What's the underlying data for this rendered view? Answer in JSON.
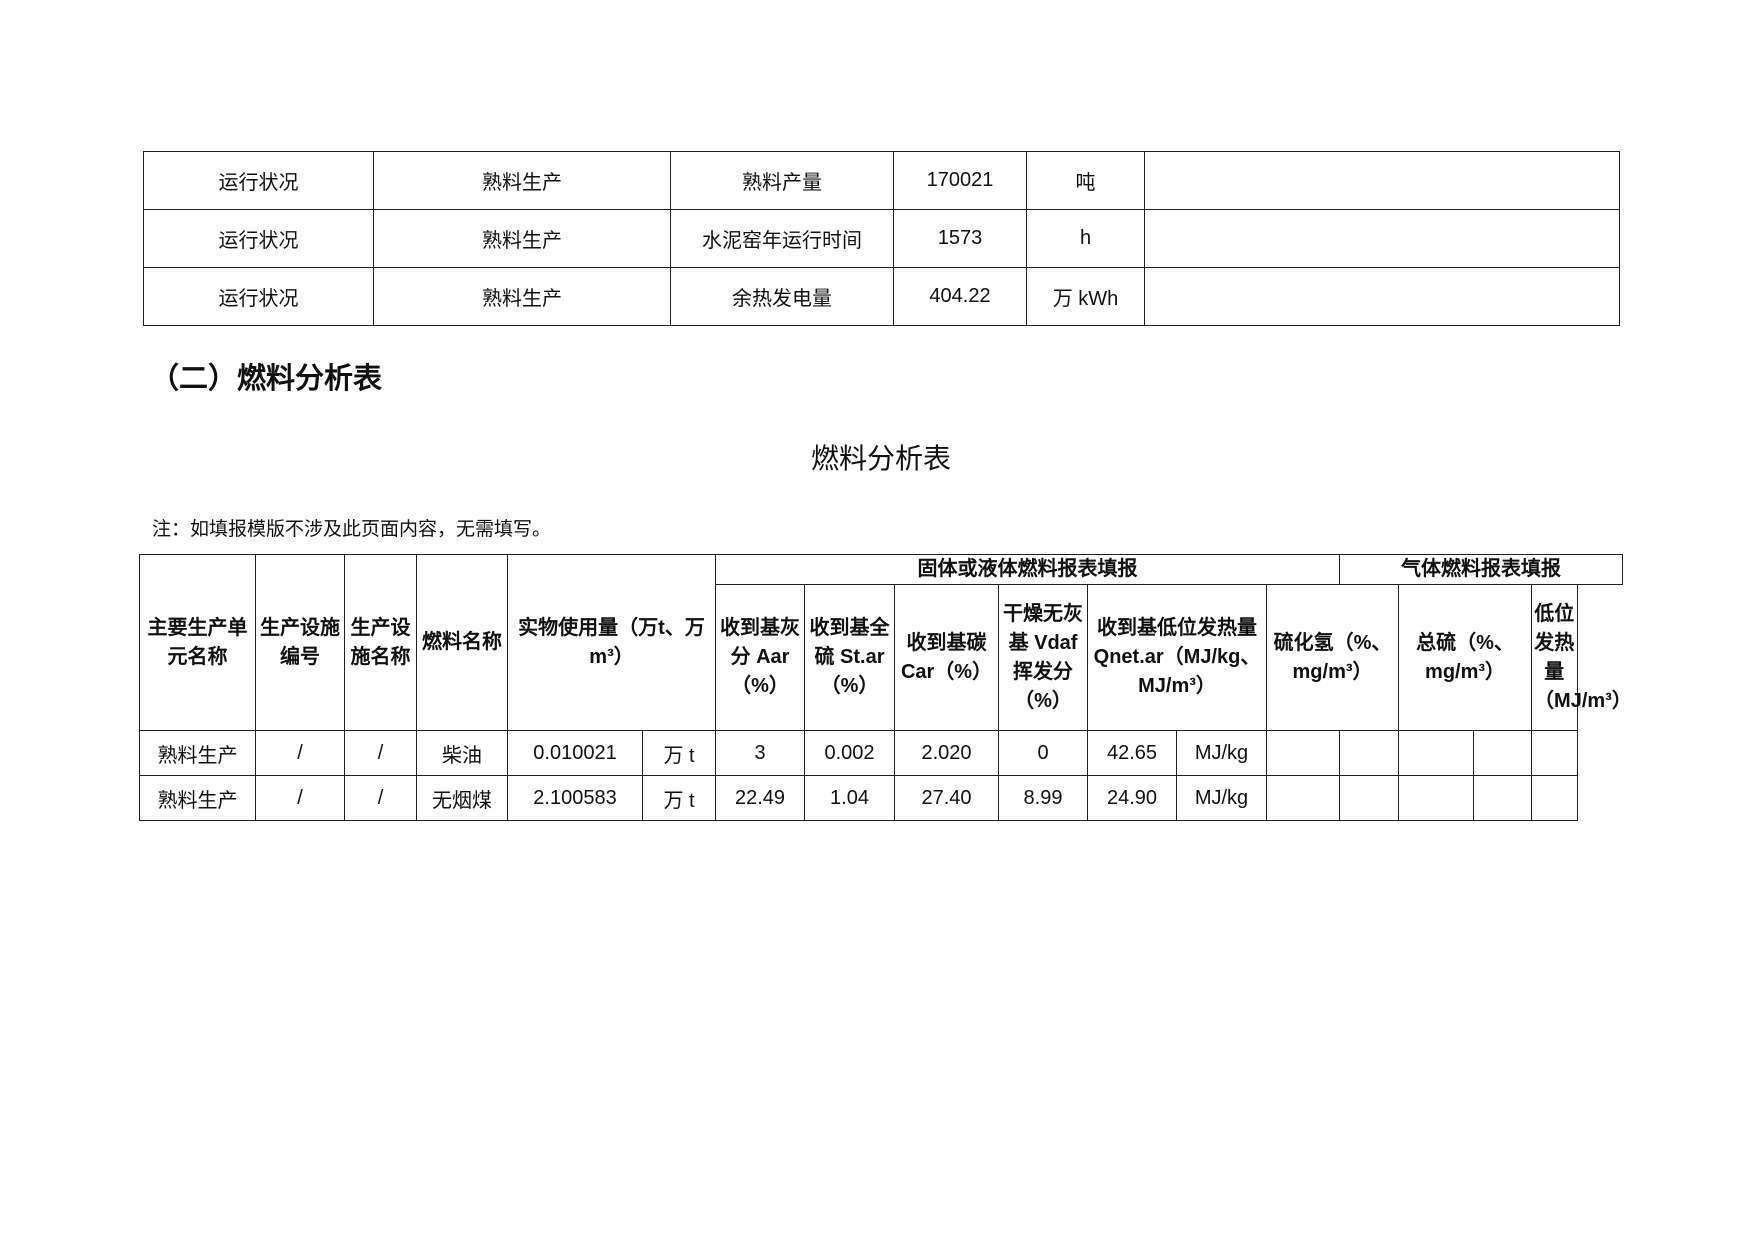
{
  "run_table": {
    "rows": [
      [
        "运行状况",
        "熟料生产",
        "熟料产量",
        "170021",
        "吨",
        ""
      ],
      [
        "运行状况",
        "熟料生产",
        "水泥窑年运行时间",
        "1573",
        "h",
        ""
      ],
      [
        "运行状况",
        "熟料生产",
        "余热发电量",
        "404.22",
        "万 kWh",
        ""
      ]
    ]
  },
  "section_heading": "（二）燃料分析表",
  "table_title": "燃料分析表",
  "note": "注：如填报模版不涉及此页面内容，无需填写。",
  "fuel_table": {
    "group_solid": "固体或液体燃料报表填报",
    "group_gas": "气体燃料报表填报",
    "headers": [
      "主要生产单元名称",
      "生产设施编号",
      "生产设施名称",
      "燃料名称",
      "实物使用量（万t、万m³）",
      "收到基灰分 Aar（%）",
      "收到基全硫 St.ar（%）",
      "收到基碳 Car（%）",
      "干燥无灰基 Vdaf 挥发分（%）",
      "收到基低位发热量 Qnet.ar（MJ/kg、MJ/m³）",
      "硫化氢（%、mg/m³）",
      "总硫（%、mg/m³）",
      "低位发热量（MJ/m³）"
    ],
    "rows": [
      [
        "熟料生产",
        "/",
        "/",
        "柴油",
        "0.010021",
        "万 t",
        "3",
        "0.002",
        "2.020",
        "0",
        "42.65",
        "MJ/kg",
        "",
        "",
        "",
        "",
        ""
      ],
      [
        "熟料生产",
        "/",
        "/",
        "无烟煤",
        "2.100583",
        "万 t",
        "22.49",
        "1.04",
        "27.40",
        "8.99",
        "24.90",
        "MJ/kg",
        "",
        "",
        "",
        "",
        ""
      ]
    ]
  }
}
